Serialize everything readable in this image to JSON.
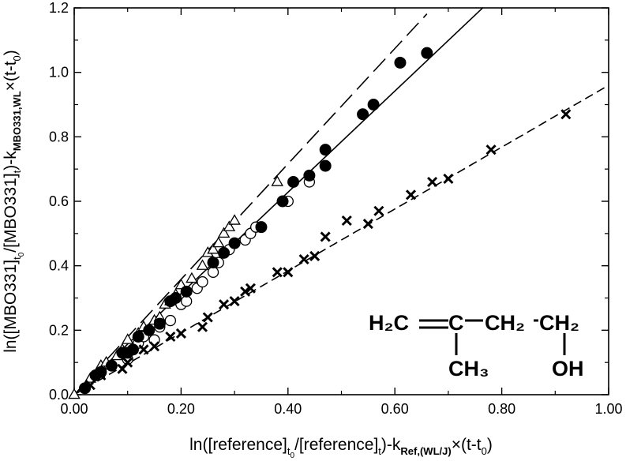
{
  "chart_data": {
    "type": "scatter",
    "xlim": [
      0,
      1.0
    ],
    "ylim": [
      0,
      1.2
    ],
    "x_ticks": [
      "0.00",
      "0.20",
      "0.40",
      "0.60",
      "0.80",
      "1.00"
    ],
    "y_ticks": [
      "0.0",
      "0.2",
      "0.4",
      "0.6",
      "0.8",
      "1.0",
      "1.2"
    ],
    "xlabel": {
      "t1": "ln([reference]",
      "s1": "t",
      "s1b": "0",
      "t2": "/[reference]",
      "s2": "t",
      "t3": ")-k",
      "s3": "Ref,(WL/J)",
      "t4": "×(t-t",
      "s4": "0",
      "t5": ")"
    },
    "ylabel": {
      "t1": "ln([MBO331]",
      "s1": "t",
      "s1b": "0",
      "t2": "/[MBO331]",
      "s2": "t",
      "t3": ")-k",
      "s3": "MBO331,WL",
      "t4": "×(t-t",
      "s4": "0",
      "t5": ")"
    },
    "grid": false,
    "series": [
      {
        "marker": "triangle-open",
        "x": [
          0.0,
          0.03,
          0.05,
          0.06,
          0.08,
          0.09,
          0.1,
          0.12,
          0.13,
          0.15,
          0.16,
          0.17,
          0.18,
          0.19,
          0.2,
          0.22,
          0.24,
          0.25,
          0.26,
          0.27,
          0.28,
          0.29,
          0.3,
          0.38
        ],
        "y": [
          0.0,
          0.05,
          0.09,
          0.1,
          0.12,
          0.14,
          0.17,
          0.19,
          0.21,
          0.23,
          0.24,
          0.28,
          0.29,
          0.31,
          0.34,
          0.36,
          0.4,
          0.44,
          0.45,
          0.47,
          0.5,
          0.52,
          0.54,
          0.66
        ]
      },
      {
        "marker": "circle-open",
        "x": [
          0.05,
          0.07,
          0.1,
          0.12,
          0.13,
          0.15,
          0.16,
          0.18,
          0.2,
          0.21,
          0.23,
          0.24,
          0.26,
          0.27,
          0.29,
          0.3,
          0.32,
          0.33,
          0.34,
          0.4,
          0.44
        ],
        "y": [
          0.07,
          0.09,
          0.11,
          0.16,
          0.18,
          0.17,
          0.21,
          0.23,
          0.28,
          0.29,
          0.33,
          0.35,
          0.38,
          0.41,
          0.45,
          0.47,
          0.48,
          0.5,
          0.52,
          0.6,
          0.66
        ]
      },
      {
        "marker": "circle-filled",
        "x": [
          0.02,
          0.04,
          0.05,
          0.07,
          0.09,
          0.1,
          0.11,
          0.12,
          0.14,
          0.16,
          0.18,
          0.19,
          0.21,
          0.26,
          0.28,
          0.3,
          0.35,
          0.39,
          0.41,
          0.44,
          0.47,
          0.47,
          0.54,
          0.56,
          0.61,
          0.66
        ],
        "y": [
          0.02,
          0.06,
          0.07,
          0.09,
          0.13,
          0.13,
          0.14,
          0.18,
          0.2,
          0.22,
          0.29,
          0.3,
          0.32,
          0.41,
          0.44,
          0.47,
          0.52,
          0.6,
          0.66,
          0.68,
          0.71,
          0.76,
          0.87,
          0.9,
          1.03,
          1.06
        ]
      },
      {
        "marker": "cross",
        "x": [
          0.03,
          0.05,
          0.09,
          0.1,
          0.13,
          0.15,
          0.18,
          0.2,
          0.24,
          0.25,
          0.28,
          0.3,
          0.32,
          0.33,
          0.38,
          0.4,
          0.43,
          0.45,
          0.47,
          0.51,
          0.55,
          0.57,
          0.63,
          0.67,
          0.7,
          0.78,
          0.92
        ],
        "y": [
          0.03,
          0.06,
          0.08,
          0.1,
          0.14,
          0.15,
          0.18,
          0.19,
          0.21,
          0.24,
          0.28,
          0.29,
          0.32,
          0.33,
          0.38,
          0.38,
          0.42,
          0.43,
          0.49,
          0.54,
          0.53,
          0.57,
          0.62,
          0.66,
          0.67,
          0.76,
          0.87
        ]
      }
    ],
    "lines": [
      {
        "style": "long-dash",
        "slope": 1.79,
        "x": [
          0.0,
          0.66
        ]
      },
      {
        "style": "solid",
        "slope": 1.57,
        "x": [
          0.0,
          0.765
        ]
      },
      {
        "style": "short-dash",
        "slope": 0.96,
        "x": [
          0.0,
          1.0
        ]
      }
    ]
  },
  "molecule": {
    "h2c": "H₂C",
    "c": "C",
    "ch2a": "CH₂",
    "ch2b": "CH₂",
    "ch3": "CH₃",
    "oh": "OH"
  }
}
